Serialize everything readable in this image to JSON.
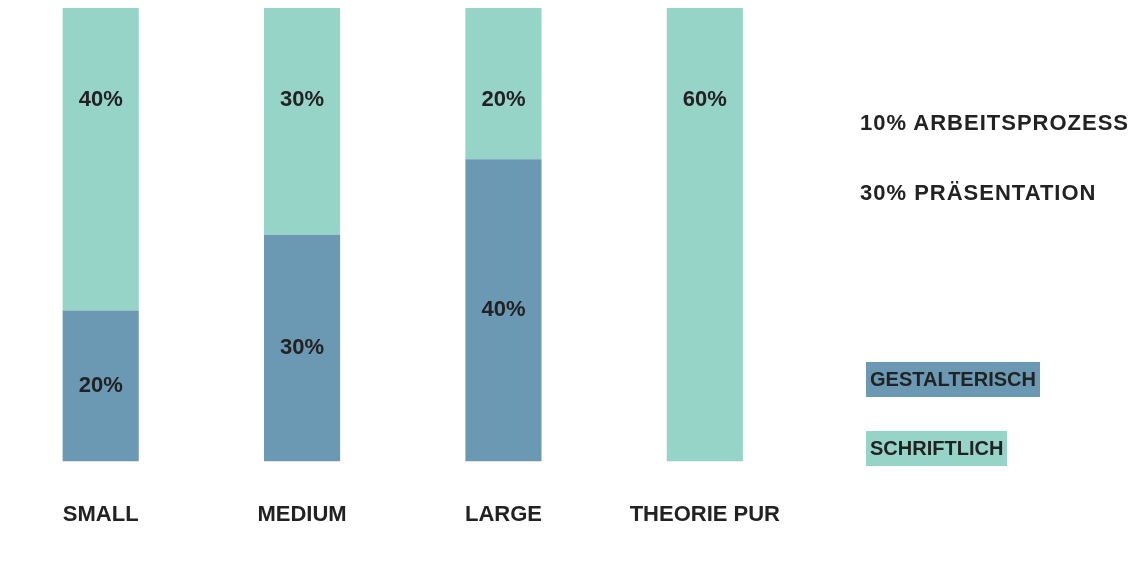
{
  "chart_data": {
    "type": "bar",
    "stacked": true,
    "categories": [
      "SMALL",
      "MEDIUM",
      "LARGE",
      "THEORIE PUR"
    ],
    "series": [
      {
        "name": "GESTALTERISCH",
        "color": "#6b99b4",
        "values": [
          20,
          30,
          40,
          null
        ],
        "value_labels": [
          "20%",
          "30%",
          "40%",
          null
        ]
      },
      {
        "name": "SCHRIFTLICH",
        "color": "#96d4c8",
        "values": [
          40,
          30,
          20,
          60
        ],
        "value_labels": [
          "40%",
          "30%",
          "20%",
          "60%"
        ]
      }
    ],
    "annotations": [
      "10% ARBEITSPROZESS",
      "30% PRÄSENTATION"
    ],
    "legend": "right",
    "grid": false
  }
}
